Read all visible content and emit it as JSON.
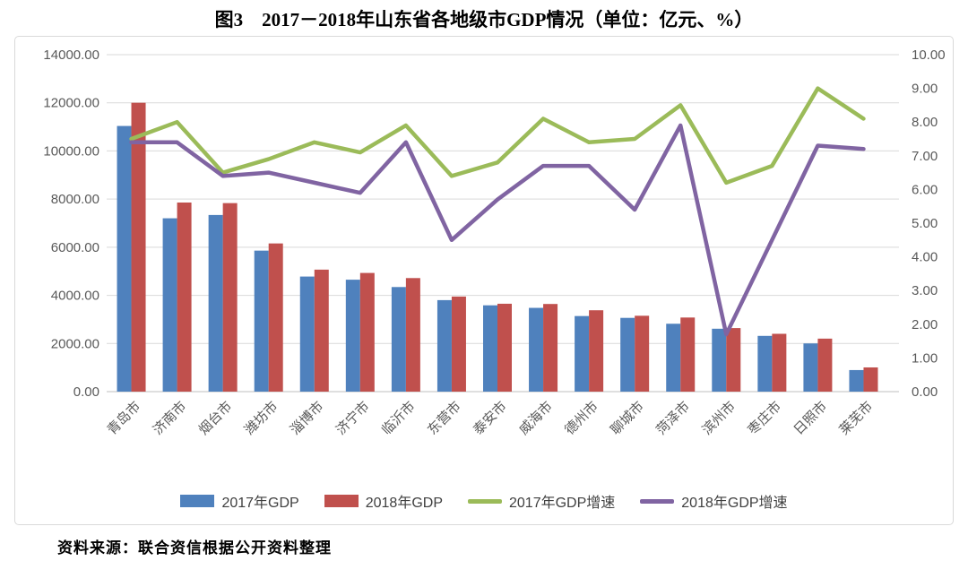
{
  "title": "图3　2017－2018年山东省各地级市GDP情况（单位：亿元、%）",
  "source_note": "资料来源：联合资信根据公开资料整理",
  "colors": {
    "bar_2017": "#4f81bd",
    "bar_2018": "#c0504d",
    "line_2017_growth": "#9bbb59",
    "line_2018_growth": "#8064a2",
    "gridline": "#d9d9d9",
    "axis_line": "#bfbfbf",
    "tick_text": "#595959",
    "legend_text": "#3f3f3f",
    "frame_border": "#d9d9d9"
  },
  "chart_data": {
    "type": "bar+line combo",
    "categories": [
      "青岛市",
      "济南市",
      "烟台市",
      "潍坊市",
      "淄博市",
      "济宁市",
      "临沂市",
      "东营市",
      "泰安市",
      "威海市",
      "德州市",
      "聊城市",
      "菏泽市",
      "滨州市",
      "枣庄市",
      "日照市",
      "莱芜市"
    ],
    "series": [
      {
        "name": "2017年GDP",
        "type": "bar",
        "axis": "left",
        "color": "#4f81bd",
        "values": [
          11037.3,
          7202.0,
          7339.0,
          5858.6,
          4781.3,
          4650.6,
          4345.4,
          3801.8,
          3585.8,
          3480.1,
          3140.2,
          3064.1,
          2820.2,
          2613.3,
          2315.9,
          2002.7,
          896.0
        ]
      },
      {
        "name": "2018年GDP",
        "type": "bar",
        "axis": "left",
        "color": "#c0504d",
        "values": [
          12001.5,
          7856.6,
          7832.6,
          6156.8,
          5068.4,
          4930.6,
          4717.8,
          3950.0,
          3651.5,
          3641.5,
          3380.3,
          3152.2,
          3078.8,
          2640.5,
          2402.4,
          2202.2,
          1005.8
        ]
      },
      {
        "name": "2017年GDP增速",
        "type": "line",
        "axis": "right",
        "color": "#9bbb59",
        "values": [
          7.5,
          8.0,
          6.5,
          6.9,
          7.4,
          7.1,
          7.9,
          6.4,
          6.8,
          8.1,
          7.4,
          7.5,
          8.5,
          6.2,
          6.7,
          9.0,
          8.1
        ]
      },
      {
        "name": "2018年GDP增速",
        "type": "line",
        "axis": "right",
        "color": "#8064a2",
        "values": [
          7.4,
          7.4,
          6.4,
          6.5,
          6.2,
          5.9,
          7.4,
          4.5,
          5.7,
          6.7,
          6.7,
          5.4,
          7.9,
          1.7,
          4.5,
          7.3,
          7.2
        ]
      }
    ],
    "left_axis": {
      "min": 0,
      "max": 14000,
      "step": 2000,
      "unit": "亿元",
      "tick_decimals": 2
    },
    "right_axis": {
      "min": 0,
      "max": 10,
      "step": 1,
      "unit": "%",
      "tick_decimals": 2
    },
    "grid": true,
    "legend_position": "bottom"
  }
}
